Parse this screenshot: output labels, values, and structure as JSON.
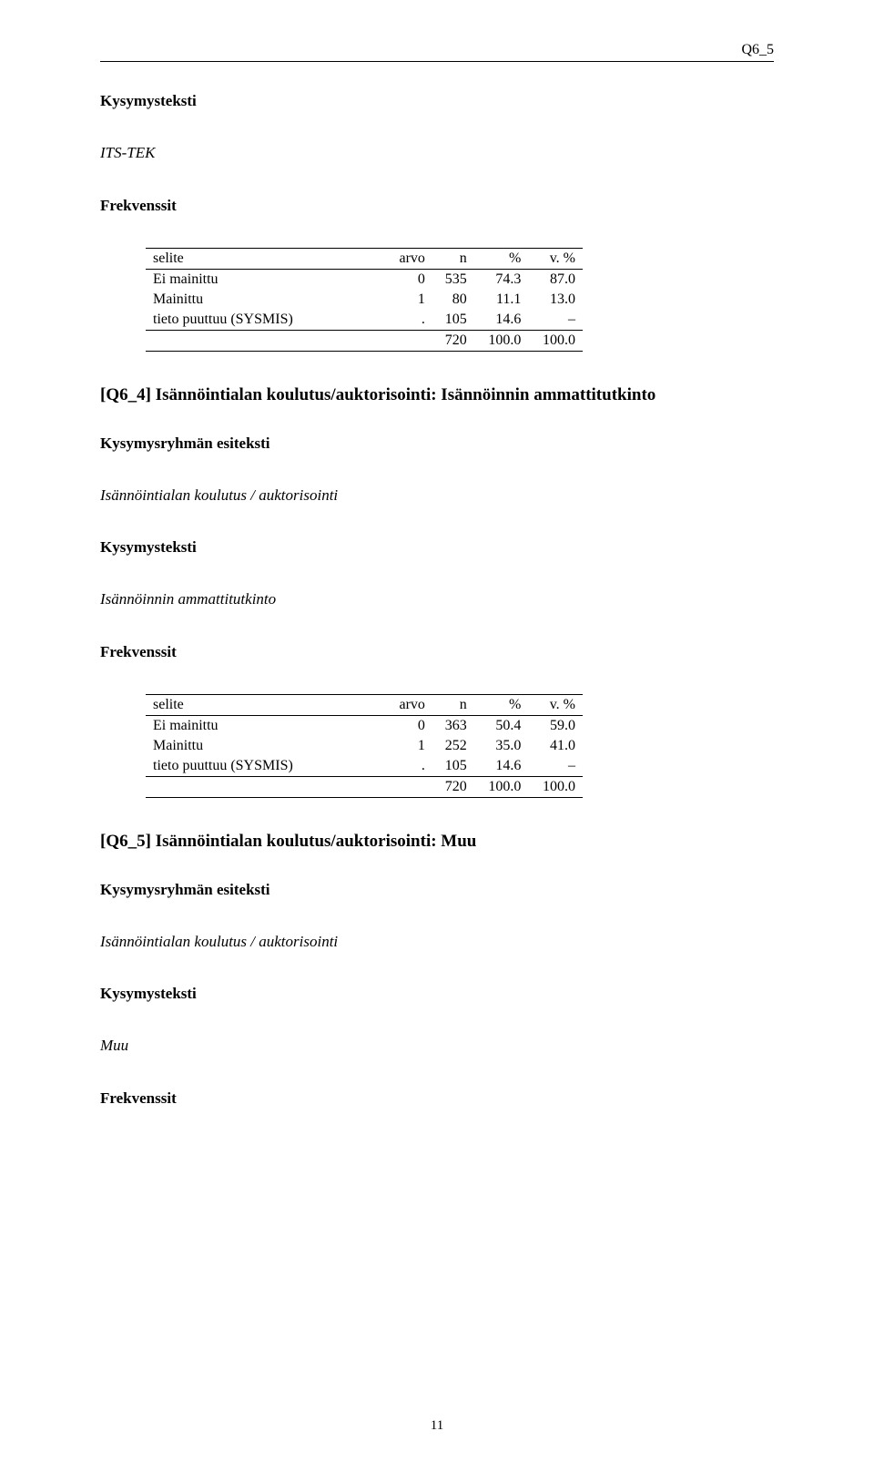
{
  "header_right": "Q6_5",
  "labels": {
    "frekvenssit": "Frekvenssit",
    "kysymysteksti": "Kysymysteksti",
    "kysymysryhman": "Kysymysryhmän esiteksti"
  },
  "table_header": {
    "selite": "selite",
    "arvo": "arvo",
    "n": "n",
    "pct": "%",
    "vpct": "v. %"
  },
  "section1": {
    "subtitle_italic": "ITS-TEK",
    "rows": [
      {
        "label": "Ei mainittu",
        "arvo": "0",
        "n": "535",
        "pct": "74.3",
        "vpct": "87.0"
      },
      {
        "label": "Mainittu",
        "arvo": "1",
        "n": "80",
        "pct": "11.1",
        "vpct": "13.0"
      },
      {
        "label": "tieto puuttuu (SYSMIS)",
        "arvo": ".",
        "n": "105",
        "pct": "14.6",
        "vpct": "–"
      }
    ],
    "total": {
      "n": "720",
      "pct": "100.0",
      "vpct": "100.0"
    }
  },
  "section2": {
    "title": "[Q6_4] Isännöintialan koulutus/auktorisointi: Isännöinnin ammattitutkinto",
    "group_text": "Isännöintialan koulutus / auktorisointi",
    "question_text": "Isännöinnin ammattitutkinto",
    "rows": [
      {
        "label": "Ei mainittu",
        "arvo": "0",
        "n": "363",
        "pct": "50.4",
        "vpct": "59.0"
      },
      {
        "label": "Mainittu",
        "arvo": "1",
        "n": "252",
        "pct": "35.0",
        "vpct": "41.0"
      },
      {
        "label": "tieto puuttuu (SYSMIS)",
        "arvo": ".",
        "n": "105",
        "pct": "14.6",
        "vpct": "–"
      }
    ],
    "total": {
      "n": "720",
      "pct": "100.0",
      "vpct": "100.0"
    }
  },
  "section3": {
    "title": "[Q6_5] Isännöintialan koulutus/auktorisointi: Muu",
    "group_text": "Isännöintialan koulutus / auktorisointi",
    "question_text": "Muu"
  },
  "page_number": "11"
}
